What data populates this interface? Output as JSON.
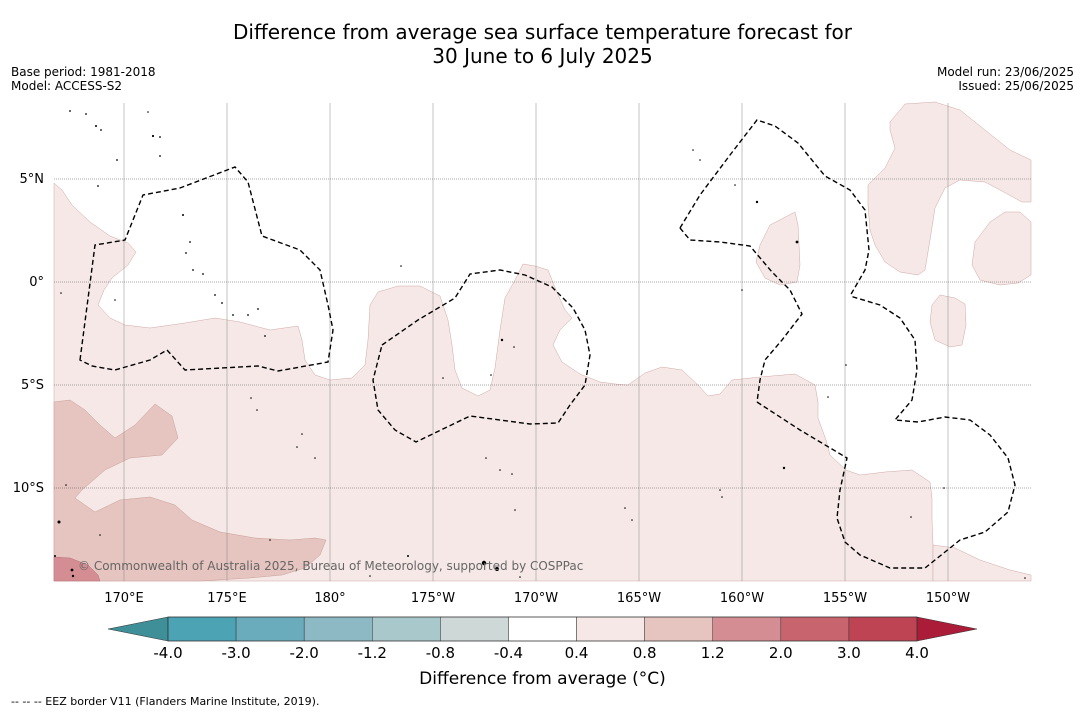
{
  "title": {
    "line1": "Difference from average sea surface temperature forecast for",
    "line2": "30 June to 6 July 2025"
  },
  "meta_left": {
    "base_period": "Base period: 1981-2018",
    "model": "Model: ACCESS-S2"
  },
  "meta_right": {
    "model_run": "Model run: 23/06/2025",
    "issued": "Issued: 25/06/2025"
  },
  "map": {
    "latitude_labels": [
      "5°N",
      "0°",
      "5°S",
      "10°S"
    ],
    "longitude_labels": [
      "170°E",
      "175°E",
      "180°",
      "175°W",
      "170°W",
      "165°W",
      "160°W",
      "155°W",
      "150°W"
    ],
    "copyright": "© Commonwealth of Australia 2025, Bureau of Meteorology, supported by COSPPac"
  },
  "colorbar": {
    "tick_labels": [
      "-4.0",
      "-3.0",
      "-2.0",
      "-1.2",
      "-0.8",
      "-0.4",
      "0.4",
      "0.8",
      "1.2",
      "2.0",
      "3.0",
      "4.0"
    ],
    "colors": [
      "#3e8f98",
      "#4ba3b3",
      "#6aacbb",
      "#8cb9c4",
      "#a9c8cb",
      "#cdd8d7",
      "#ffffff",
      "#f5e8e6",
      "#e6c4bf",
      "#d48e93",
      "#c8646e",
      "#be4453",
      "#ab1c38"
    ],
    "label": "Difference from average (°C)"
  },
  "legend_note": "--  --  -- EEZ border V11 (Flanders Marine Institute, 2019)."
}
